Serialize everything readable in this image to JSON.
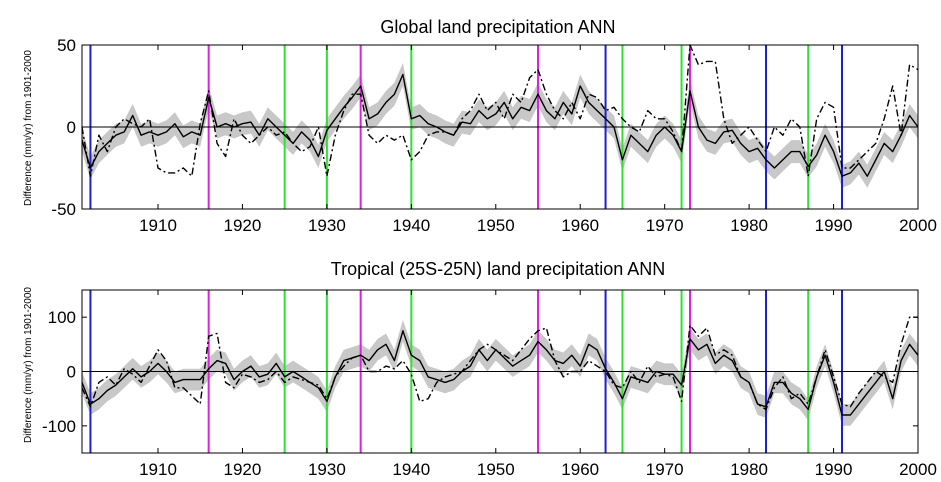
{
  "chart_data": [
    {
      "type": "line",
      "title": "Global land precipitation ANN",
      "ylabel": "Difference (mm/yr) from 1901-2000",
      "xlim": [
        1901,
        2000
      ],
      "ylim": [
        -50,
        50
      ],
      "xticks": [
        1910,
        1920,
        1930,
        1940,
        1950,
        1960,
        1970,
        1980,
        1990,
        2000
      ],
      "yticks": [
        -50,
        0,
        50
      ],
      "grid": false,
      "zero_line": true,
      "event_lines": {
        "blue": [
          1902,
          1963,
          1982,
          1991
        ],
        "magenta": [
          1916,
          1934,
          1955,
          1973
        ],
        "green": [
          1925,
          1930,
          1940,
          1965,
          1972,
          1987
        ]
      },
      "series": [
        {
          "style": "solid",
          "x": [
            1901,
            1902,
            1903,
            1904,
            1905,
            1906,
            1907,
            1908,
            1909,
            1910,
            1911,
            1912,
            1913,
            1914,
            1915,
            1916,
            1917,
            1918,
            1919,
            1920,
            1921,
            1922,
            1923,
            1924,
            1925,
            1926,
            1927,
            1928,
            1929,
            1930,
            1931,
            1932,
            1933,
            1934,
            1935,
            1936,
            1937,
            1938,
            1939,
            1940,
            1941,
            1942,
            1943,
            1944,
            1945,
            1946,
            1947,
            1948,
            1949,
            1950,
            1951,
            1952,
            1953,
            1954,
            1955,
            1956,
            1957,
            1958,
            1959,
            1960,
            1961,
            1962,
            1963,
            1964,
            1965,
            1966,
            1967,
            1968,
            1969,
            1970,
            1971,
            1972,
            1973,
            1974,
            1975,
            1976,
            1977,
            1978,
            1979,
            1980,
            1981,
            1982,
            1983,
            1984,
            1985,
            1986,
            1987,
            1988,
            1989,
            1990,
            1991,
            1992,
            1993,
            1994,
            1995,
            1996,
            1997,
            1998,
            1999,
            2000
          ],
          "y": [
            -8,
            -25,
            -15,
            -10,
            -5,
            -3,
            7,
            -5,
            -3,
            -5,
            -3,
            2,
            -6,
            -3,
            -5,
            18,
            0,
            2,
            0,
            2,
            3,
            -5,
            5,
            0,
            -5,
            -10,
            -3,
            -8,
            -18,
            -2,
            5,
            12,
            18,
            25,
            5,
            8,
            15,
            20,
            32,
            5,
            7,
            2,
            0,
            -3,
            -5,
            3,
            2,
            10,
            5,
            8,
            15,
            5,
            12,
            10,
            20,
            10,
            5,
            15,
            8,
            25,
            15,
            10,
            5,
            0,
            -20,
            -5,
            -10,
            -15,
            -5,
            0,
            -5,
            -15,
            22,
            0,
            -8,
            -10,
            -3,
            -2,
            -10,
            -15,
            -13,
            -20,
            -25,
            -20,
            -15,
            -15,
            -24,
            -17,
            -5,
            -15,
            -30,
            -28,
            -22,
            -30,
            -20,
            -10,
            -15,
            -5,
            7,
            0
          ]
        },
        {
          "style": "dash-dot",
          "x": [
            1901,
            1902,
            1903,
            1904,
            1905,
            1906,
            1907,
            1908,
            1909,
            1910,
            1911,
            1912,
            1913,
            1914,
            1915,
            1916,
            1917,
            1918,
            1919,
            1920,
            1921,
            1922,
            1923,
            1924,
            1925,
            1926,
            1927,
            1928,
            1929,
            1930,
            1931,
            1932,
            1933,
            1934,
            1935,
            1936,
            1937,
            1938,
            1939,
            1940,
            1941,
            1942,
            1943,
            1944,
            1945,
            1946,
            1947,
            1948,
            1949,
            1950,
            1951,
            1952,
            1953,
            1954,
            1955,
            1956,
            1957,
            1958,
            1959,
            1960,
            1961,
            1962,
            1963,
            1964,
            1965,
            1966,
            1967,
            1968,
            1969,
            1970,
            1971,
            1972,
            1973,
            1974,
            1975,
            1976,
            1977,
            1978,
            1979,
            1980,
            1981,
            1982,
            1983,
            1984,
            1985,
            1986,
            1987,
            1988,
            1989,
            1990,
            1991,
            1992,
            1993,
            1994,
            1995,
            1996,
            1997,
            1998,
            1999,
            2000
          ],
          "y": [
            0,
            -30,
            -5,
            -15,
            0,
            5,
            2,
            0,
            5,
            -25,
            -28,
            -28,
            -25,
            -30,
            2,
            22,
            -10,
            -18,
            5,
            -5,
            -10,
            -5,
            0,
            -5,
            -3,
            -10,
            -15,
            -12,
            0,
            -30,
            -5,
            10,
            20,
            20,
            -5,
            -10,
            -5,
            -8,
            -5,
            -20,
            -15,
            -5,
            -3,
            -3,
            -5,
            5,
            10,
            20,
            10,
            15,
            5,
            20,
            15,
            30,
            35,
            20,
            10,
            5,
            15,
            5,
            20,
            18,
            10,
            12,
            5,
            0,
            -3,
            10,
            5,
            5,
            -3,
            -15,
            52,
            38,
            40,
            40,
            5,
            -10,
            -5,
            0,
            -8,
            -15,
            0,
            -5,
            5,
            0,
            -30,
            5,
            15,
            12,
            -25,
            -25,
            -20,
            -15,
            -10,
            5,
            25,
            -5,
            38,
            35
          ]
        }
      ],
      "band_halfwidth": 7
    },
    {
      "type": "line",
      "title": "Tropical (25S-25N)  land precipitation ANN",
      "ylabel": "Difference (mm/yr) from 1901-2000",
      "xlim": [
        1901,
        2000
      ],
      "ylim": [
        -150,
        150
      ],
      "xticks": [
        1910,
        1920,
        1930,
        1940,
        1950,
        1960,
        1970,
        1980,
        1990,
        2000
      ],
      "yticks": [
        -100,
        0,
        100
      ],
      "grid": false,
      "zero_line": true,
      "event_lines": {
        "blue": [
          1902,
          1963,
          1982,
          1991
        ],
        "magenta": [
          1916,
          1934,
          1955,
          1973
        ],
        "green": [
          1925,
          1930,
          1940,
          1965,
          1972,
          1987
        ]
      },
      "series": [
        {
          "style": "solid",
          "x": [
            1901,
            1902,
            1903,
            1904,
            1905,
            1906,
            1907,
            1908,
            1909,
            1910,
            1911,
            1912,
            1913,
            1914,
            1915,
            1916,
            1917,
            1918,
            1919,
            1920,
            1921,
            1922,
            1923,
            1924,
            1925,
            1926,
            1927,
            1928,
            1929,
            1930,
            1931,
            1932,
            1933,
            1934,
            1935,
            1936,
            1937,
            1938,
            1939,
            1940,
            1941,
            1942,
            1943,
            1944,
            1945,
            1946,
            1947,
            1948,
            1949,
            1950,
            1951,
            1952,
            1953,
            1954,
            1955,
            1956,
            1957,
            1958,
            1959,
            1960,
            1961,
            1962,
            1963,
            1964,
            1965,
            1966,
            1967,
            1968,
            1969,
            1970,
            1971,
            1972,
            1973,
            1974,
            1975,
            1976,
            1977,
            1978,
            1979,
            1980,
            1981,
            1982,
            1983,
            1984,
            1985,
            1986,
            1987,
            1988,
            1989,
            1990,
            1991,
            1992,
            1993,
            1994,
            1995,
            1996,
            1997,
            1998,
            1999,
            2000
          ],
          "y": [
            -20,
            -60,
            -50,
            -35,
            -25,
            -10,
            5,
            -10,
            0,
            15,
            0,
            -20,
            -15,
            -15,
            -15,
            5,
            20,
            15,
            -15,
            0,
            10,
            -10,
            -5,
            15,
            -10,
            0,
            -10,
            -20,
            -30,
            -55,
            -10,
            20,
            25,
            30,
            20,
            40,
            50,
            20,
            75,
            30,
            20,
            -10,
            -15,
            -20,
            -15,
            0,
            10,
            40,
            20,
            40,
            25,
            10,
            20,
            30,
            55,
            40,
            20,
            15,
            30,
            10,
            50,
            40,
            5,
            -20,
            -50,
            -10,
            -15,
            -20,
            0,
            -5,
            -5,
            -25,
            60,
            40,
            50,
            15,
            30,
            20,
            -10,
            -20,
            -60,
            -65,
            -20,
            -20,
            -40,
            -50,
            -70,
            -10,
            30,
            -20,
            -80,
            -80,
            -60,
            -40,
            -20,
            0,
            -50,
            20,
            50,
            30
          ]
        },
        {
          "style": "dash-dot",
          "x": [
            1901,
            1902,
            1903,
            1904,
            1905,
            1906,
            1907,
            1908,
            1909,
            1910,
            1911,
            1912,
            1913,
            1914,
            1915,
            1916,
            1917,
            1918,
            1919,
            1920,
            1921,
            1922,
            1923,
            1924,
            1925,
            1926,
            1927,
            1928,
            1929,
            1930,
            1931,
            1932,
            1933,
            1934,
            1935,
            1936,
            1937,
            1938,
            1939,
            1940,
            1941,
            1942,
            1943,
            1944,
            1945,
            1946,
            1947,
            1948,
            1949,
            1950,
            1951,
            1952,
            1953,
            1954,
            1955,
            1956,
            1957,
            1958,
            1959,
            1960,
            1961,
            1962,
            1963,
            1964,
            1965,
            1966,
            1967,
            1968,
            1969,
            1970,
            1971,
            1972,
            1973,
            1974,
            1975,
            1976,
            1977,
            1978,
            1979,
            1980,
            1981,
            1982,
            1983,
            1984,
            1985,
            1986,
            1987,
            1988,
            1989,
            1990,
            1991,
            1992,
            1993,
            1994,
            1995,
            1996,
            1997,
            1998,
            1999,
            2000
          ],
          "y": [
            -30,
            -65,
            -20,
            -10,
            -25,
            5,
            -5,
            -20,
            10,
            40,
            20,
            -30,
            -30,
            -45,
            -60,
            65,
            70,
            -20,
            -30,
            -5,
            -10,
            -20,
            -15,
            0,
            -20,
            -10,
            -15,
            -20,
            -25,
            -50,
            -10,
            10,
            25,
            30,
            0,
            0,
            10,
            5,
            20,
            -5,
            -55,
            -50,
            -20,
            -10,
            -5,
            0,
            20,
            40,
            50,
            40,
            30,
            20,
            40,
            60,
            75,
            80,
            20,
            -10,
            0,
            0,
            20,
            10,
            0,
            -25,
            -30,
            0,
            -20,
            10,
            -10,
            -5,
            -10,
            -55,
            85,
            65,
            80,
            30,
            40,
            30,
            -10,
            -20,
            -60,
            -70,
            -30,
            -10,
            -50,
            -40,
            -60,
            -10,
            40,
            -10,
            -60,
            -65,
            -40,
            -20,
            0,
            -10,
            -20,
            50,
            100,
            100
          ]
        }
      ],
      "band_halfwidth": 20
    }
  ]
}
